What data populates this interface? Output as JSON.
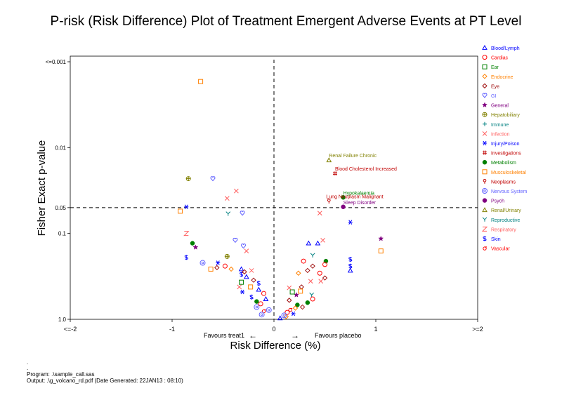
{
  "chart_data": {
    "type": "scatter",
    "title": "P-risk (Risk Difference) Plot of Treatment Emergent Adverse Events at PT Level",
    "xlabel": "Risk Difference (%)",
    "ylabel": "Fisher Exact p-value",
    "xlim": [
      -2,
      2
    ],
    "ylim_pvalue": [
      1.0,
      0.001
    ],
    "y_scale": "log",
    "x_ticks": [
      "<=-2",
      "-1",
      "0",
      "1",
      ">=2"
    ],
    "y_ticks": [
      "<=0.001",
      "0.01",
      "0.05",
      "0.1",
      "1.0"
    ],
    "reference_lines": {
      "x": 0,
      "y": 0.05
    },
    "annotations": {
      "favours_left": "Favours treat1",
      "favours_right": "Favours placebo",
      "arrow_left": "←",
      "arrow_right": "→"
    },
    "legend_position": "right",
    "legend": [
      {
        "name": "Blood/Lymph",
        "color": "#0000ff",
        "marker": "triangle"
      },
      {
        "name": "Cardiac",
        "color": "#ff0000",
        "marker": "circle"
      },
      {
        "name": "Ear",
        "color": "#008000",
        "marker": "square"
      },
      {
        "name": "Endocrine",
        "color": "#ff8000",
        "marker": "diamond"
      },
      {
        "name": "Eye",
        "color": "#a01010",
        "marker": "diamond"
      },
      {
        "name": "GI",
        "color": "#6060ff",
        "marker": "heart"
      },
      {
        "name": "General",
        "color": "#800080",
        "marker": "star"
      },
      {
        "name": "Hepatobiliary",
        "color": "#808000",
        "marker": "circleplus"
      },
      {
        "name": "Immune",
        "color": "#008080",
        "marker": "plus"
      },
      {
        "name": "Infection",
        "color": "#ff6060",
        "marker": "x"
      },
      {
        "name": "Injury/Poison",
        "color": "#0000ff",
        "marker": "asterisk"
      },
      {
        "name": "Investigations",
        "color": "#c00000",
        "marker": "hash"
      },
      {
        "name": "Metabolism",
        "color": "#008000",
        "marker": "dot"
      },
      {
        "name": "Musculoskeletal",
        "color": "#ff8000",
        "marker": "square"
      },
      {
        "name": "Neoplasms",
        "color": "#c00000",
        "marker": "pin"
      },
      {
        "name": "Nervous System",
        "color": "#6060ff",
        "marker": "ring"
      },
      {
        "name": "Psych",
        "color": "#800080",
        "marker": "dot"
      },
      {
        "name": "Renal/Urinary",
        "color": "#808000",
        "marker": "triangle"
      },
      {
        "name": "Reproductive",
        "color": "#008080",
        "marker": "y"
      },
      {
        "name": "Respiratory",
        "color": "#ff6060",
        "marker": "z"
      },
      {
        "name": "Skin",
        "color": "#0000ff",
        "marker": "dollar"
      },
      {
        "name": "Vascular",
        "color": "#ff0000",
        "marker": "sigma"
      }
    ],
    "labeled_points": [
      {
        "label": "Renal Failure Chronic",
        "x": 0.54,
        "p": 0.014,
        "category": "Renal/Urinary"
      },
      {
        "label": "Blood Cholesterol Increased",
        "x": 0.6,
        "p": 0.02,
        "category": "Investigations"
      },
      {
        "label": "Hypokalaemia",
        "x": 0.68,
        "p": 0.038,
        "category": "Metabolism"
      },
      {
        "label": "Lung Neoplasm Malignant",
        "x": 0.54,
        "p": 0.042,
        "category": "Neoplasms"
      },
      {
        "label": "Sleep Disorder",
        "x": 0.68,
        "p": 0.049,
        "category": "Psych"
      }
    ],
    "points": [
      {
        "category": "Musculoskeletal",
        "x": -0.72,
        "p": 0.0017
      },
      {
        "category": "Hepatobiliary",
        "x": -0.84,
        "p": 0.023
      },
      {
        "category": "GI",
        "x": -0.6,
        "p": 0.023
      },
      {
        "category": "Infection",
        "x": -0.37,
        "p": 0.032
      },
      {
        "category": "Infection",
        "x": -0.46,
        "p": 0.039
      },
      {
        "category": "Injury/Poison",
        "x": -0.86,
        "p": 0.049
      },
      {
        "category": "Musculoskeletal",
        "x": -0.92,
        "p": 0.055
      },
      {
        "category": "Reproductive",
        "x": -0.45,
        "p": 0.059
      },
      {
        "category": "GI",
        "x": -0.31,
        "p": 0.058
      },
      {
        "category": "Infection",
        "x": 0.45,
        "p": 0.058
      },
      {
        "category": "Injury/Poison",
        "x": 0.75,
        "p": 0.074
      },
      {
        "category": "Respiratory",
        "x": -0.86,
        "p": 0.1
      },
      {
        "category": "Metabolism",
        "x": -0.8,
        "p": 0.13
      },
      {
        "category": "General",
        "x": -0.77,
        "p": 0.145
      },
      {
        "category": "Skin",
        "x": -0.86,
        "p": 0.19
      },
      {
        "category": "GI",
        "x": -0.38,
        "p": 0.12
      },
      {
        "category": "GI",
        "x": -0.3,
        "p": 0.14
      },
      {
        "category": "Infection",
        "x": -0.27,
        "p": 0.16
      },
      {
        "category": "Hepatobiliary",
        "x": -0.46,
        "p": 0.185
      },
      {
        "category": "Injury/Poison",
        "x": -0.55,
        "p": 0.22
      },
      {
        "category": "Nervous System",
        "x": -0.7,
        "p": 0.22
      },
      {
        "category": "Musculoskeletal",
        "x": -0.62,
        "p": 0.26
      },
      {
        "category": "Eye",
        "x": -0.56,
        "p": 0.25
      },
      {
        "category": "Cardiac",
        "x": -0.48,
        "p": 0.24
      },
      {
        "category": "Endocrine",
        "x": -0.42,
        "p": 0.26
      },
      {
        "category": "Blood/Lymph",
        "x": -0.32,
        "p": 0.26
      },
      {
        "category": "Infection",
        "x": -0.22,
        "p": 0.27
      },
      {
        "category": "Blood/Lymph",
        "x": -0.27,
        "p": 0.32
      },
      {
        "category": "Skin",
        "x": -0.32,
        "p": 0.3
      },
      {
        "category": "Ear",
        "x": -0.32,
        "p": 0.37
      },
      {
        "category": "Eye",
        "x": -0.2,
        "p": 0.35
      },
      {
        "category": "Infection",
        "x": -0.34,
        "p": 0.42
      },
      {
        "category": "Musculoskeletal",
        "x": -0.23,
        "p": 0.42
      },
      {
        "category": "Injury/Poison",
        "x": -0.31,
        "p": 0.48
      },
      {
        "category": "Blood/Lymph",
        "x": -0.15,
        "p": 0.45
      },
      {
        "category": "Cardiac",
        "x": -0.1,
        "p": 0.5
      },
      {
        "category": "Skin",
        "x": -0.22,
        "p": 0.55
      },
      {
        "category": "Metabolism",
        "x": -0.17,
        "p": 0.62
      },
      {
        "category": "Nervous System",
        "x": -0.17,
        "p": 0.72
      },
      {
        "category": "Vascular",
        "x": -0.1,
        "p": 0.8
      },
      {
        "category": "Nervous System",
        "x": -0.12,
        "p": 0.88
      },
      {
        "category": "Blood/Lymph",
        "x": 0.06,
        "p": 0.97
      },
      {
        "category": "Endocrine",
        "x": 0.12,
        "p": 0.93
      },
      {
        "category": "Injury/Poison",
        "x": 0.19,
        "p": 0.86
      },
      {
        "category": "Eye",
        "x": 0.28,
        "p": 0.72
      },
      {
        "category": "Metabolism",
        "x": 0.23,
        "p": 0.68
      },
      {
        "category": "General",
        "x": 0.22,
        "p": 0.52
      },
      {
        "category": "Ear",
        "x": 0.18,
        "p": 0.48
      },
      {
        "category": "Reproductive",
        "x": 0.37,
        "p": 0.52
      },
      {
        "category": "Cardiac",
        "x": 0.38,
        "p": 0.58
      },
      {
        "category": "Eye",
        "x": 0.27,
        "p": 0.42
      },
      {
        "category": "Endocrine",
        "x": 0.24,
        "p": 0.29
      },
      {
        "category": "Eye",
        "x": 0.33,
        "p": 0.27
      },
      {
        "category": "Cardiac",
        "x": 0.45,
        "p": 0.29
      },
      {
        "category": "Eye",
        "x": 0.5,
        "p": 0.33
      },
      {
        "category": "Infection",
        "x": 0.46,
        "p": 0.36
      },
      {
        "category": "Infection",
        "x": 0.36,
        "p": 0.36
      },
      {
        "category": "Blood/Lymph",
        "x": 0.34,
        "p": 0.13
      },
      {
        "category": "Cardiac",
        "x": 0.29,
        "p": 0.21
      },
      {
        "category": "Reproductive",
        "x": 0.38,
        "p": 0.18
      },
      {
        "category": "Eye",
        "x": 0.38,
        "p": 0.24
      },
      {
        "category": "Blood/Lymph",
        "x": 0.43,
        "p": 0.13
      },
      {
        "category": "Metabolism",
        "x": 0.51,
        "p": 0.21
      },
      {
        "category": "Cardiac",
        "x": 0.5,
        "p": 0.23
      },
      {
        "category": "Infection",
        "x": 0.48,
        "p": 0.12
      },
      {
        "category": "Skin",
        "x": 0.75,
        "p": 0.2
      },
      {
        "category": "Skin",
        "x": 0.75,
        "p": 0.24
      },
      {
        "category": "Blood/Lymph",
        "x": 0.75,
        "p": 0.27
      },
      {
        "category": "General",
        "x": 1.05,
        "p": 0.115
      },
      {
        "category": "Musculoskeletal",
        "x": 1.05,
        "p": 0.16
      },
      {
        "category": "Infection",
        "x": 0.15,
        "p": 0.43
      },
      {
        "category": "Eye",
        "x": 0.15,
        "p": 0.6
      },
      {
        "category": "Cardiac",
        "x": 0.13,
        "p": 0.83
      },
      {
        "category": "Nervous System",
        "x": 0.1,
        "p": 0.9
      },
      {
        "category": "Vascular",
        "x": 0.16,
        "p": 0.77
      },
      {
        "category": "Musculoskeletal",
        "x": 0.26,
        "p": 0.47
      },
      {
        "category": "Cardiac",
        "x": -0.13,
        "p": 0.66
      },
      {
        "category": "Blood/Lymph",
        "x": -0.08,
        "p": 0.58
      },
      {
        "category": "Skin",
        "x": -0.15,
        "p": 0.38
      },
      {
        "category": "Eye",
        "x": -0.29,
        "p": 0.28
      },
      {
        "category": "Nervous System",
        "x": -0.05,
        "p": 0.78
      },
      {
        "category": "Endocrine",
        "x": 0.21,
        "p": 0.74
      },
      {
        "category": "Metabolism",
        "x": 0.33,
        "p": 0.64
      }
    ]
  },
  "footer": {
    "dot_1": ".",
    "dot_2": ".",
    "program": "Program: .\\sample_call.sas",
    "output": "Output: .\\g_volcano_rd.pdf (Date Generated: 22JAN13 : 08:10)"
  }
}
